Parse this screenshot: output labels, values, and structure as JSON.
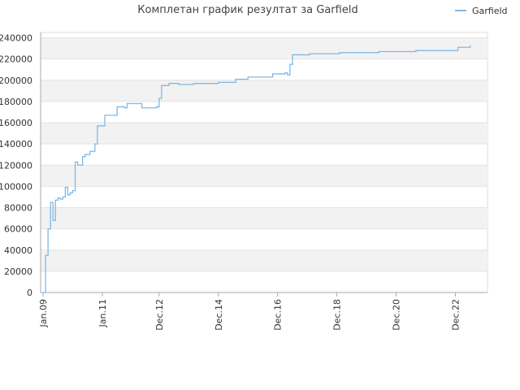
{
  "chart_data": {
    "type": "line",
    "title": "Комплетан график резултат за Garfield",
    "x": [
      "2009-01",
      "2009-02",
      "2009-03",
      "2009-04",
      "2009-05",
      "2009-06",
      "2009-07",
      "2009-08",
      "2009-09",
      "2009-10",
      "2009-11",
      "2009-12",
      "2010-01",
      "2010-02",
      "2010-03",
      "2010-04",
      "2010-05",
      "2010-06",
      "2010-08",
      "2010-10",
      "2010-11",
      "2011-02",
      "2011-06",
      "2011-07",
      "2011-10",
      "2011-11",
      "2012-05",
      "2012-11",
      "2012-12",
      "2013-01",
      "2013-04",
      "2013-08",
      "2014-02",
      "2014-12",
      "2015-07",
      "2015-12",
      "2016-10",
      "2017-03",
      "2017-04",
      "2017-05",
      "2017-06",
      "2018-01",
      "2019-01",
      "2020-05",
      "2021-08",
      "2023-01",
      "2023-06"
    ],
    "series": [
      {
        "name": "Garfield",
        "color": "#7fb9e6",
        "values": [
          0,
          35000,
          60000,
          85000,
          68000,
          87000,
          89000,
          88000,
          90000,
          99000,
          92000,
          94000,
          96000,
          123000,
          120000,
          120000,
          128000,
          130000,
          133000,
          140000,
          157000,
          167000,
          167000,
          175000,
          174000,
          178000,
          174000,
          175000,
          183000,
          195000,
          197000,
          196000,
          197000,
          198000,
          201000,
          203000,
          206000,
          207000,
          205000,
          215000,
          224000,
          225000,
          226000,
          227000,
          228000,
          231000,
          233000
        ]
      }
    ],
    "xlim": [
      "2008-12",
      "2024-01"
    ],
    "xticks": [
      {
        "value": "2009-01",
        "label": "Jan.09"
      },
      {
        "value": "2011-01",
        "label": "Jan.11"
      },
      {
        "value": "2012-12",
        "label": "Dec.12"
      },
      {
        "value": "2014-12",
        "label": "Dec.14"
      },
      {
        "value": "2016-12",
        "label": "Dec.16"
      },
      {
        "value": "2018-12",
        "label": "Dec.18"
      },
      {
        "value": "2020-12",
        "label": "Dec.20"
      },
      {
        "value": "2022-12",
        "label": "Dec.22"
      }
    ],
    "ylim": [
      0,
      245000
    ],
    "yticks": [
      0,
      20000,
      40000,
      60000,
      80000,
      100000,
      120000,
      140000,
      160000,
      180000,
      200000,
      220000,
      240000
    ],
    "grid": true,
    "legend": "top-right"
  }
}
